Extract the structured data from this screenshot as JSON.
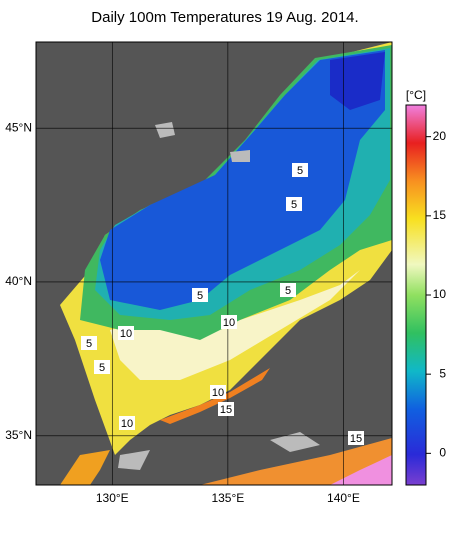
{
  "title": "Daily 100m Temperatures 19 Aug. 2014.",
  "map": {
    "lat_lim": [
      33.4,
      47.8
    ],
    "lon_lim": [
      126.7,
      142.1
    ],
    "lat_ticks": [
      {
        "value": 45,
        "label": "45°N"
      },
      {
        "value": 40,
        "label": "40°N"
      },
      {
        "value": 35,
        "label": "35°N"
      }
    ],
    "lon_ticks": [
      {
        "value": 130,
        "label": "130°E"
      },
      {
        "value": 135,
        "label": "135°E"
      },
      {
        "value": 140,
        "label": "140°E"
      }
    ],
    "contour_labels": [
      5,
      5,
      5,
      5,
      5,
      5,
      10,
      10,
      10,
      10,
      15,
      15
    ]
  },
  "colorbar": {
    "unit": "[°C]",
    "lim": [
      -2,
      22
    ],
    "ticks": [
      0,
      5,
      10,
      15,
      20
    ]
  }
}
